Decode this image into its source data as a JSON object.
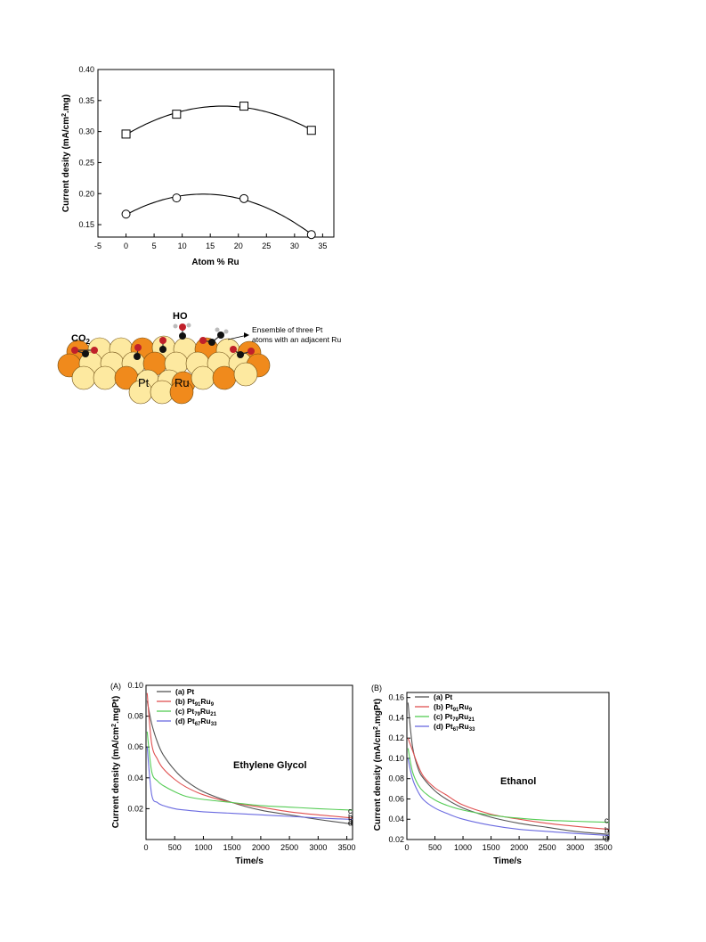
{
  "chart_data": [
    {
      "type": "scatter",
      "xlabel": "Atom % Ru",
      "ylabel": "Current desity (mA/cm².mg)",
      "xlim": [
        -5,
        37
      ],
      "ylim": [
        0.13,
        0.4
      ],
      "xticks": [
        -5,
        0,
        5,
        10,
        15,
        20,
        25,
        30,
        35
      ],
      "yticks": [
        "0.15",
        "0.20",
        "0.25",
        "0.30",
        "0.35",
        "0.40"
      ],
      "series": [
        {
          "marker": "square",
          "x": [
            0,
            9,
            21,
            33
          ],
          "y": [
            0.296,
            0.328,
            0.341,
            0.302
          ]
        },
        {
          "marker": "circle",
          "x": [
            0,
            9,
            21,
            33
          ],
          "y": [
            0.167,
            0.193,
            0.192,
            0.134
          ]
        }
      ]
    },
    {
      "type": "line",
      "panel": "(A)",
      "annotation": "Ethylene Glycol",
      "xlabel": "Time/s",
      "ylabel": "Current density (mA/cm².mgPt)",
      "xlim": [
        0,
        3600
      ],
      "ylim": [
        0.0,
        0.1
      ],
      "xticks": [
        0,
        500,
        1000,
        1500,
        2000,
        2500,
        3000,
        3500
      ],
      "yticks": [
        "0.02",
        "0.04",
        "0.06",
        "0.08",
        "0.10"
      ],
      "series": [
        {
          "name": "(a) Pt",
          "end_label": "a",
          "color": "#555555",
          "x": [
            20,
            100,
            200,
            300,
            500,
            700,
            1000,
            1500,
            2000,
            2500,
            3000,
            3600
          ],
          "y": [
            0.09,
            0.075,
            0.063,
            0.055,
            0.045,
            0.038,
            0.031,
            0.024,
            0.019,
            0.016,
            0.013,
            0.01
          ]
        },
        {
          "name": "(b) Pt91Ru9",
          "end_label": "b",
          "color": "#e05050",
          "x": [
            20,
            100,
            200,
            300,
            500,
            700,
            1000,
            1500,
            2000,
            2500,
            3000,
            3600
          ],
          "y": [
            0.095,
            0.062,
            0.052,
            0.046,
            0.039,
            0.034,
            0.029,
            0.024,
            0.021,
            0.018,
            0.016,
            0.014
          ]
        },
        {
          "name": "(c) Pt79Ru21",
          "end_label": "c",
          "color": "#55cc55",
          "x": [
            20,
            100,
            200,
            300,
            500,
            700,
            1000,
            1500,
            2000,
            2500,
            3000,
            3600
          ],
          "y": [
            0.07,
            0.044,
            0.038,
            0.035,
            0.031,
            0.028,
            0.026,
            0.024,
            0.022,
            0.021,
            0.02,
            0.019
          ]
        },
        {
          "name": "(d) Pt67Ru33",
          "end_label": "d",
          "color": "#6a6ae0",
          "x": [
            20,
            100,
            200,
            300,
            500,
            700,
            1000,
            1500,
            2000,
            2500,
            3000,
            3600
          ],
          "y": [
            0.06,
            0.029,
            0.024,
            0.022,
            0.02,
            0.019,
            0.018,
            0.017,
            0.016,
            0.015,
            0.014,
            0.013
          ]
        }
      ]
    },
    {
      "type": "line",
      "panel": "(B)",
      "annotation": "Ethanol",
      "xlabel": "Time/s",
      "ylabel": "Current density (mA/cm².mgPt)",
      "xlim": [
        0,
        3600
      ],
      "ylim": [
        0.02,
        0.165
      ],
      "xticks": [
        0,
        500,
        1000,
        1500,
        2000,
        2500,
        3000,
        3500
      ],
      "yticks": [
        "0.02",
        "0.04",
        "0.06",
        "0.08",
        "0.10",
        "0.12",
        "0.14",
        "0.16"
      ],
      "series": [
        {
          "name": "(a) Pt",
          "end_label": "a",
          "color": "#555555",
          "x": [
            20,
            100,
            200,
            300,
            500,
            700,
            1000,
            1500,
            2000,
            2500,
            3000,
            3600
          ],
          "y": [
            0.155,
            0.112,
            0.09,
            0.08,
            0.068,
            0.06,
            0.051,
            0.042,
            0.036,
            0.032,
            0.028,
            0.025
          ]
        },
        {
          "name": "(b) Pt91Ru9",
          "end_label": "b",
          "color": "#e05050",
          "x": [
            20,
            100,
            200,
            300,
            500,
            700,
            1000,
            1500,
            2000,
            2500,
            3000,
            3600
          ],
          "y": [
            0.12,
            0.108,
            0.093,
            0.082,
            0.071,
            0.064,
            0.054,
            0.045,
            0.04,
            0.036,
            0.033,
            0.03
          ]
        },
        {
          "name": "(c) Pt79Ru21",
          "end_label": "c",
          "color": "#55cc55",
          "x": [
            20,
            100,
            200,
            300,
            500,
            700,
            1000,
            1500,
            2000,
            2500,
            3000,
            3600
          ],
          "y": [
            0.11,
            0.087,
            0.074,
            0.067,
            0.059,
            0.054,
            0.049,
            0.044,
            0.041,
            0.039,
            0.038,
            0.037
          ]
        },
        {
          "name": "(d) Pt67Ru33",
          "end_label": "d",
          "color": "#6a6ae0",
          "x": [
            20,
            100,
            200,
            300,
            500,
            700,
            1000,
            1500,
            2000,
            2500,
            3000,
            3600
          ],
          "y": [
            0.1,
            0.08,
            0.067,
            0.059,
            0.051,
            0.046,
            0.04,
            0.034,
            0.03,
            0.028,
            0.026,
            0.024
          ]
        }
      ]
    }
  ],
  "diagram": {
    "labels": {
      "co2": "CO",
      "co2_sub": "2",
      "ho": "HO",
      "ensemble_line1": "Ensemble of three Pt",
      "ensemble_line2": "atoms with an adjacent Ru",
      "pt": "Pt",
      "ru": "Ru"
    },
    "colors": {
      "pt": "#fde9a0",
      "ru": "#f08a1c",
      "oxygen": "#c0202a",
      "carbon": "#111111"
    }
  }
}
